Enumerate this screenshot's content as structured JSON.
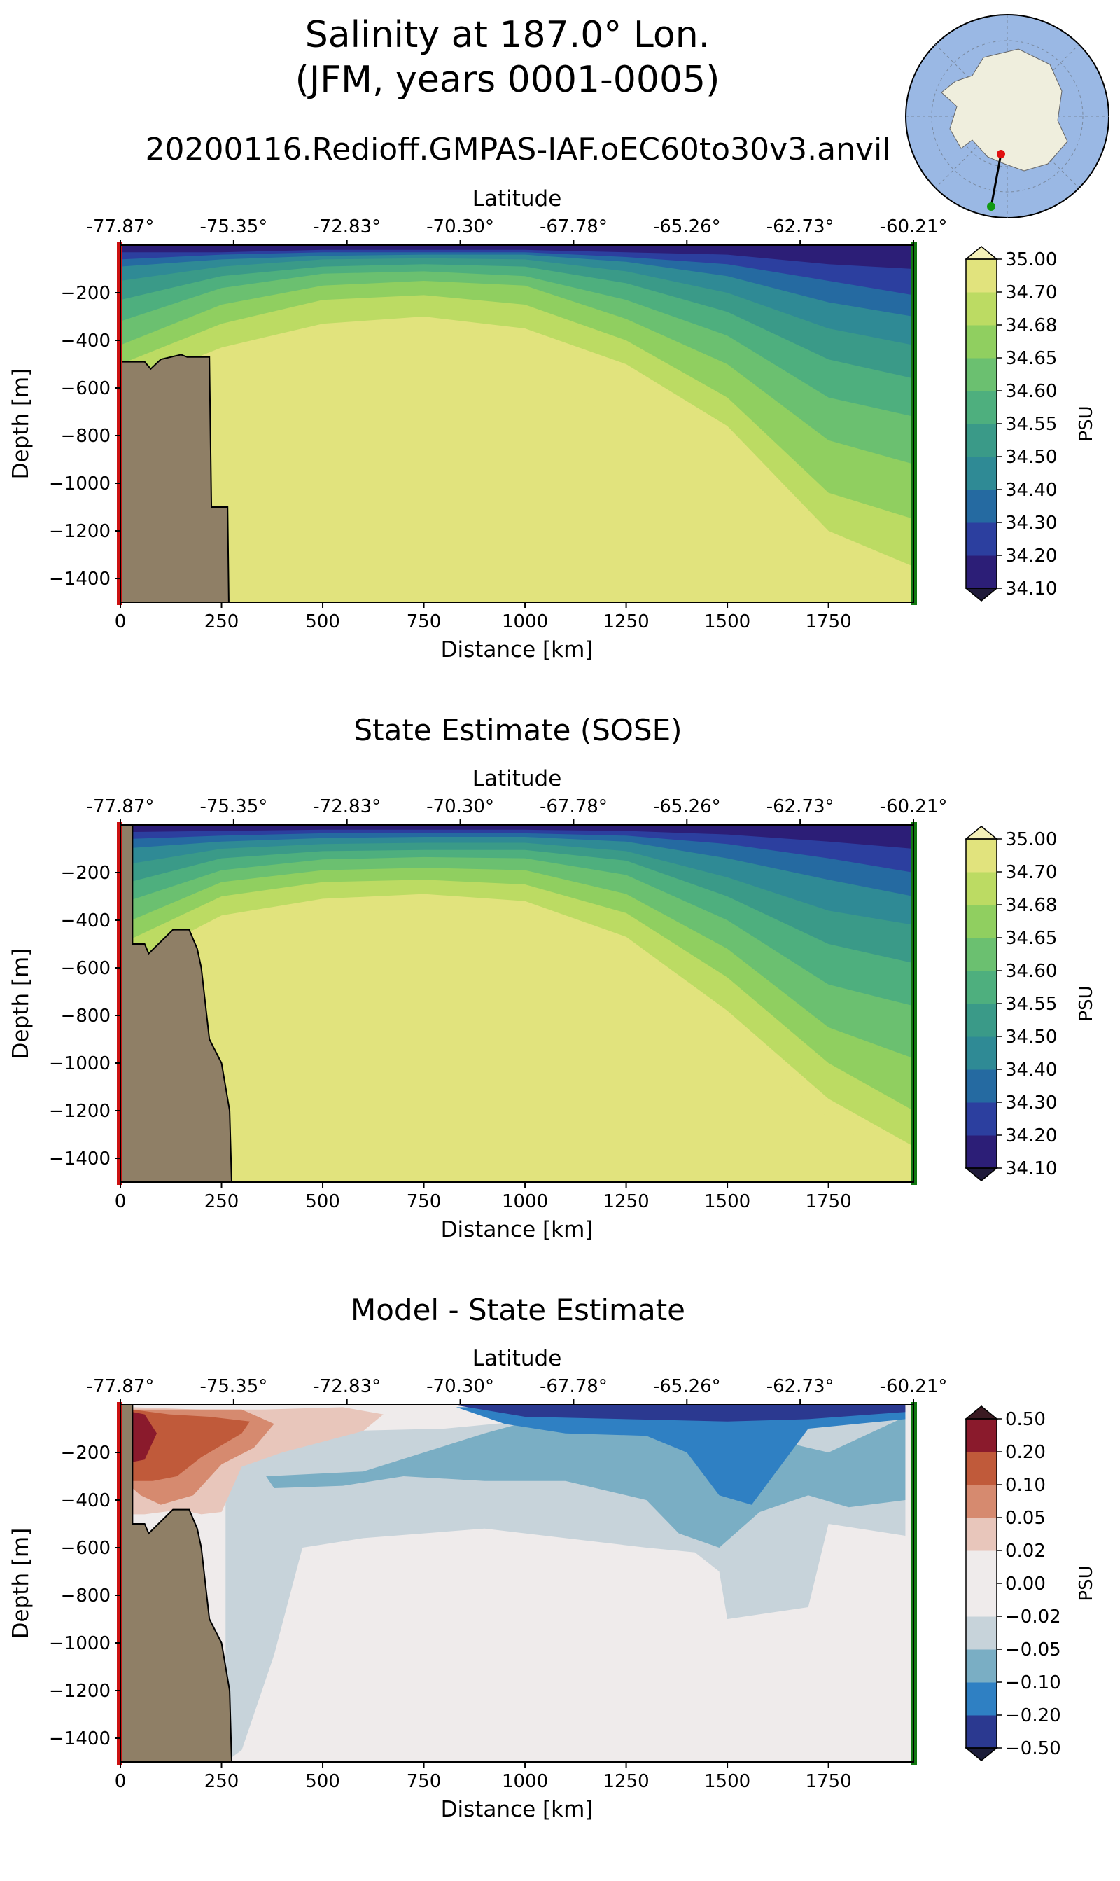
{
  "title_line1": "Salinity at 187.0° Lon.",
  "title_line2": "(JFM, years 0001-0005)",
  "run_name": "20200116.Redioff.GMPAS-IAF.oEC60to30v3.anvil",
  "colors": {
    "land": "#8f7f66",
    "start_marker": "#cc1111",
    "end_marker": "#117711",
    "ocean_map": "#9ab8e4",
    "ice_map": "#efeedd"
  },
  "chart_data": [
    {
      "type": "heatmap",
      "panel": "model",
      "title": "",
      "xlabel": "Distance [km]",
      "ylabel": "Depth [m]",
      "top_axis_label": "Latitude",
      "xlim": [
        0,
        1960
      ],
      "ylim": [
        -1500,
        0
      ],
      "xticks": [
        0,
        250,
        500,
        750,
        1000,
        1250,
        1500,
        1750
      ],
      "xtick_labels": [
        "0",
        "250",
        "500",
        "750",
        "1000",
        "1250",
        "1500",
        "1750"
      ],
      "yticks": [
        -200,
        -400,
        -600,
        -800,
        -1000,
        -1200,
        -1400
      ],
      "ytick_labels": [
        "−200",
        "−400",
        "−600",
        "−800",
        "−1000",
        "−1200",
        "−1400"
      ],
      "lat_ticks_km": [
        0,
        280,
        560,
        840,
        1120,
        1400,
        1680,
        1960
      ],
      "lat_labels": [
        "-77.87°",
        "-75.35°",
        "-72.83°",
        "-70.30°",
        "-67.78°",
        "-65.26°",
        "-62.73°",
        "-60.21°"
      ],
      "levels": [
        34.1,
        34.2,
        34.3,
        34.4,
        34.5,
        34.55,
        34.6,
        34.65,
        34.68,
        34.7,
        35.0
      ],
      "colors": [
        "#2c1e77",
        "#2c3f9f",
        "#256aa1",
        "#2f8a95",
        "#3a9a88",
        "#4eaf7e",
        "#6bc070",
        "#90cf60",
        "#bcdb63",
        "#e1e37d"
      ],
      "bottom_fill": "#e1e37d",
      "isolines_depth": [
        [
          -30,
          -30,
          -20,
          -20,
          -20,
          -30,
          -40,
          -80,
          -100
        ],
        [
          -60,
          -40,
          -30,
          -30,
          -30,
          -50,
          -80,
          -150,
          -210
        ],
        [
          -90,
          -60,
          -45,
          -40,
          -40,
          -70,
          -130,
          -240,
          -300
        ],
        [
          -150,
          -90,
          -60,
          -55,
          -60,
          -110,
          -200,
          -350,
          -420
        ],
        [
          -230,
          -130,
          -90,
          -80,
          -90,
          -160,
          -280,
          -480,
          -560
        ],
        [
          -320,
          -180,
          -120,
          -110,
          -130,
          -230,
          -380,
          -640,
          -720
        ],
        [
          -420,
          -250,
          -170,
          -150,
          -170,
          -310,
          -500,
          -820,
          -920
        ],
        [
          -500,
          -330,
          -230,
          -210,
          -250,
          -400,
          -640,
          -1040,
          -1150
        ],
        [
          -600,
          -430,
          -330,
          -300,
          -350,
          -500,
          -760,
          -1200,
          -1350
        ],
        [
          -700,
          -600,
          -520,
          -480,
          -560,
          -730,
          -900,
          -1270,
          -1500
        ]
      ],
      "isoline_x_km": [
        0,
        250,
        500,
        750,
        1000,
        1250,
        1500,
        1750,
        1960
      ],
      "land": {
        "x_km": [
          0,
          0,
          60,
          75,
          100,
          150,
          165,
          220,
          225,
          265,
          268,
          270
        ],
        "depth": [
          -1500,
          -490,
          -490,
          -520,
          -480,
          -460,
          -470,
          -470,
          -1100,
          -1100,
          -1500,
          -1500
        ]
      },
      "colorbar": {
        "labels": [
          "35.00",
          "34.70",
          "34.68",
          "34.65",
          "34.60",
          "34.55",
          "34.50",
          "34.40",
          "34.30",
          "34.20",
          "34.10"
        ],
        "label": "PSU",
        "under": "#1f1a3a",
        "over": "#f5f1b8"
      }
    },
    {
      "type": "heatmap",
      "panel": "sose",
      "title": "State Estimate (SOSE)",
      "xlabel": "Distance [km]",
      "ylabel": "Depth [m]",
      "top_axis_label": "Latitude",
      "xlim": [
        0,
        1960
      ],
      "ylim": [
        -1500,
        0
      ],
      "xticks": [
        0,
        250,
        500,
        750,
        1000,
        1250,
        1500,
        1750
      ],
      "xtick_labels": [
        "0",
        "250",
        "500",
        "750",
        "1000",
        "1250",
        "1500",
        "1750"
      ],
      "yticks": [
        -200,
        -400,
        -600,
        -800,
        -1000,
        -1200,
        -1400
      ],
      "ytick_labels": [
        "−200",
        "−400",
        "−600",
        "−800",
        "−1000",
        "−1200",
        "−1400"
      ],
      "lat_ticks_km": [
        0,
        280,
        560,
        840,
        1120,
        1400,
        1680,
        1960
      ],
      "lat_labels": [
        "-77.87°",
        "-75.35°",
        "-72.83°",
        "-70.30°",
        "-67.78°",
        "-65.26°",
        "-62.73°",
        "-60.21°"
      ],
      "levels": [
        34.1,
        34.2,
        34.3,
        34.4,
        34.5,
        34.55,
        34.6,
        34.65,
        34.68,
        34.7,
        35.0
      ],
      "colors": [
        "#2c1e77",
        "#2c3f9f",
        "#256aa1",
        "#2f8a95",
        "#3a9a88",
        "#4eaf7e",
        "#6bc070",
        "#90cf60",
        "#bcdb63",
        "#e1e37d"
      ],
      "bottom_fill": "#e1e37d",
      "isolines_depth": [
        [
          -30,
          -25,
          -20,
          -20,
          -20,
          -25,
          -40,
          -70,
          -100
        ],
        [
          -60,
          -45,
          -35,
          -35,
          -35,
          -45,
          -80,
          -140,
          -200
        ],
        [
          -100,
          -70,
          -55,
          -50,
          -50,
          -70,
          -140,
          -230,
          -300
        ],
        [
          -170,
          -100,
          -80,
          -75,
          -75,
          -110,
          -220,
          -360,
          -420
        ],
        [
          -250,
          -140,
          -110,
          -105,
          -105,
          -150,
          -300,
          -500,
          -580
        ],
        [
          -330,
          -190,
          -145,
          -135,
          -140,
          -210,
          -400,
          -670,
          -760
        ],
        [
          -420,
          -240,
          -190,
          -180,
          -190,
          -290,
          -520,
          -850,
          -980
        ],
        [
          -500,
          -300,
          -240,
          -230,
          -250,
          -370,
          -640,
          -1000,
          -1200
        ],
        [
          -600,
          -380,
          -310,
          -290,
          -320,
          -470,
          -780,
          -1150,
          -1350
        ],
        [
          -700,
          -450,
          -370,
          -350,
          -390,
          -560,
          -880,
          -1230,
          -1470
        ]
      ],
      "isoline_x_km": [
        0,
        250,
        500,
        750,
        1000,
        1250,
        1500,
        1750,
        1960
      ],
      "land": {
        "x_km": [
          0,
          0,
          30,
          30,
          60,
          70,
          130,
          170,
          190,
          200,
          220,
          250,
          270,
          275,
          280
        ],
        "depth": [
          -1500,
          0,
          0,
          -500,
          -500,
          -540,
          -440,
          -440,
          -520,
          -600,
          -900,
          -1000,
          -1200,
          -1500,
          -1500
        ]
      },
      "colorbar": {
        "labels": [
          "35.00",
          "34.70",
          "34.68",
          "34.65",
          "34.60",
          "34.55",
          "34.50",
          "34.40",
          "34.30",
          "34.20",
          "34.10"
        ],
        "label": "PSU",
        "under": "#1f1a3a",
        "over": "#f5f1b8"
      }
    },
    {
      "type": "heatmap",
      "panel": "difference",
      "title": "Model - State Estimate",
      "xlabel": "Distance [km]",
      "ylabel": "Depth [m]",
      "top_axis_label": "Latitude",
      "xlim": [
        0,
        1960
      ],
      "ylim": [
        -1500,
        0
      ],
      "xticks": [
        0,
        250,
        500,
        750,
        1000,
        1250,
        1500,
        1750
      ],
      "xtick_labels": [
        "0",
        "250",
        "500",
        "750",
        "1000",
        "1250",
        "1500",
        "1750"
      ],
      "yticks": [
        -200,
        -400,
        -600,
        -800,
        -1000,
        -1200,
        -1400
      ],
      "ytick_labels": [
        "−200",
        "−400",
        "−600",
        "−800",
        "−1000",
        "−1200",
        "−1400"
      ],
      "lat_ticks_km": [
        0,
        280,
        560,
        840,
        1120,
        1400,
        1680,
        1960
      ],
      "lat_labels": [
        "-77.87°",
        "-75.35°",
        "-72.83°",
        "-70.30°",
        "-67.78°",
        "-65.26°",
        "-62.73°",
        "-60.21°"
      ],
      "levels": [
        -0.5,
        -0.2,
        -0.1,
        -0.05,
        -0.02,
        0.0,
        0.02,
        0.05,
        0.1,
        0.2,
        0.5
      ],
      "colors": [
        "#2b3990",
        "#2f80c3",
        "#7aaec4",
        "#c7d3da",
        "#efebeb",
        "#efebeb",
        "#e8c6bb",
        "#d68a6f",
        "#c05a3a",
        "#8a1a2c"
      ],
      "background": "#efebeb",
      "blobs": [
        {
          "level_index": 3,
          "x_km": [
            260,
            400,
            550,
            800,
            1050,
            1300,
            1500,
            1750,
            1940,
            1940,
            1750,
            1700,
            1500,
            1480,
            1420,
            1300,
            1100,
            900,
            600,
            450,
            380,
            300,
            260
          ],
          "depth": [
            -30,
            -80,
            -110,
            -100,
            -60,
            -40,
            -40,
            -30,
            -40,
            -550,
            -500,
            -850,
            -900,
            -700,
            -620,
            -600,
            -560,
            -520,
            -560,
            -600,
            -1050,
            -1450,
            -1500
          ]
        },
        {
          "level_index": 2,
          "x_km": [
            360,
            600,
            900,
            1050,
            1250,
            1500,
            1600,
            1750,
            1940,
            1940,
            1800,
            1700,
            1580,
            1480,
            1380,
            1300,
            1100,
            900,
            700,
            550,
            380,
            360
          ],
          "depth": [
            -300,
            -280,
            -120,
            -50,
            -50,
            -60,
            -140,
            -200,
            -50,
            -400,
            -430,
            -380,
            -450,
            -600,
            -540,
            -400,
            -320,
            -320,
            -300,
            -340,
            -350,
            -300
          ]
        },
        {
          "level_index": 1,
          "x_km": [
            830,
            1000,
            1200,
            1400,
            1500,
            1580,
            1700,
            1940,
            1940,
            1700,
            1560,
            1480,
            1400,
            1300,
            1100,
            950,
            830
          ],
          "depth": [
            -10,
            -10,
            -10,
            -15,
            -20,
            -30,
            -20,
            -10,
            -60,
            -100,
            -420,
            -380,
            -200,
            -130,
            -120,
            -80,
            -10
          ]
        },
        {
          "level_index": 0,
          "x_km": [
            830,
            1000,
            1250,
            1500,
            1700,
            1940,
            1940,
            1700,
            1500,
            1250,
            1000,
            830
          ],
          "depth": [
            -2,
            -2,
            -2,
            -2,
            -2,
            -2,
            -30,
            -60,
            -70,
            -60,
            -50,
            -2
          ]
        },
        {
          "level_index": 6,
          "x_km": [
            30,
            200,
            350,
            550,
            650,
            600,
            400,
            300,
            250,
            200,
            150,
            60,
            30
          ],
          "depth": [
            -10,
            -20,
            -20,
            -10,
            -40,
            -110,
            -200,
            -260,
            -450,
            -460,
            -440,
            -460,
            -460
          ]
        },
        {
          "level_index": 7,
          "x_km": [
            30,
            150,
            300,
            380,
            330,
            250,
            180,
            100,
            50,
            30
          ],
          "depth": [
            -20,
            -20,
            -20,
            -80,
            -180,
            -250,
            -380,
            -420,
            -380,
            -350
          ]
        },
        {
          "level_index": 8,
          "x_km": [
            30,
            120,
            220,
            320,
            300,
            200,
            140,
            80,
            30
          ],
          "depth": [
            -20,
            -40,
            -50,
            -70,
            -120,
            -220,
            -300,
            -320,
            -320
          ]
        },
        {
          "level_index": 9,
          "x_km": [
            30,
            60,
            90,
            60,
            30
          ],
          "depth": [
            -30,
            -40,
            -120,
            -230,
            -240
          ]
        }
      ],
      "land": {
        "x_km": [
          0,
          0,
          30,
          30,
          60,
          70,
          130,
          170,
          190,
          200,
          220,
          250,
          270,
          275,
          280
        ],
        "depth": [
          -1500,
          0,
          0,
          -500,
          -500,
          -540,
          -440,
          -440,
          -520,
          -600,
          -900,
          -1000,
          -1200,
          -1500,
          -1500
        ]
      },
      "colorbar": {
        "labels": [
          "0.50",
          "0.20",
          "0.10",
          "0.05",
          "0.02",
          "0.00",
          "−0.02",
          "−0.05",
          "−0.10",
          "−0.20",
          "−0.50"
        ],
        "label": "PSU",
        "under": "#1c1d3a",
        "over": "#3b1a22"
      }
    }
  ]
}
